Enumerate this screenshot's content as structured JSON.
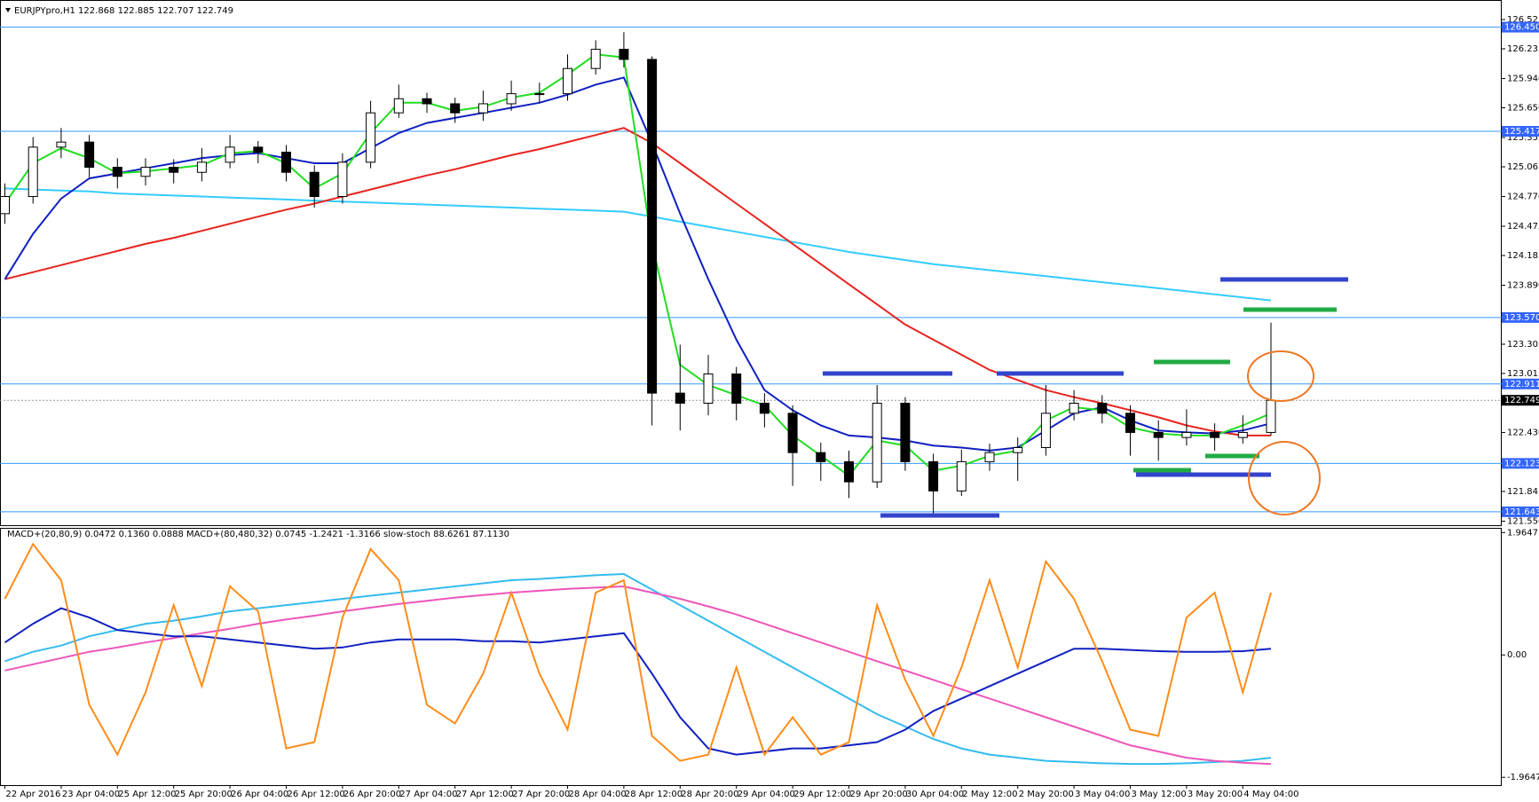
{
  "chart_data": [
    {
      "type": "candlestick",
      "title": "EURJPYpro,H1 122.868 122.885 122.707 122.749",
      "categories": [
        "22 Apr 2016",
        null,
        "23 Apr 04:00",
        null,
        "25 Apr 12:00",
        null,
        "25 Apr 20:00",
        null,
        "26 Apr 04:00",
        null,
        "26 Apr 12:00",
        null,
        "26 Apr 20:00",
        null,
        "27 Apr 04:00",
        null,
        "27 Apr 12:00",
        null,
        "27 Apr 20:00",
        null,
        "28 Apr 04:00",
        null,
        "28 Apr 12:00",
        null,
        "28 Apr 20:00",
        null,
        "29 Apr 04:00",
        null,
        "29 Apr 12:00",
        null,
        "29 Apr 20:00",
        null,
        "30 Apr 04:00",
        null,
        "2 May 12:00",
        null,
        "2 May 20:00",
        null,
        "3 May 04:00",
        null,
        "3 May 12:00",
        null,
        "3 May 20:00",
        null,
        "4 May 04:00",
        null
      ],
      "open": [
        124.6,
        124.77,
        125.26,
        125.31,
        125.06,
        124.97,
        125.06,
        125.01,
        125.11,
        125.26,
        125.21,
        125.01,
        124.77,
        125.11,
        125.6,
        125.74,
        125.69,
        125.6,
        125.69,
        125.79,
        125.79,
        126.04,
        126.23,
        126.13,
        122.82,
        122.72,
        123.01,
        122.72,
        122.62,
        122.23,
        122.14,
        121.94,
        122.72,
        122.14,
        121.85,
        122.14,
        122.23,
        122.28,
        122.62,
        122.72,
        122.62,
        122.43,
        122.38,
        122.43,
        122.38,
        122.43
      ],
      "high": [
        124.9,
        125.36,
        125.45,
        125.38,
        125.15,
        125.15,
        125.14,
        125.25,
        125.38,
        125.32,
        125.28,
        125.08,
        125.2,
        125.72,
        125.88,
        125.8,
        125.75,
        125.82,
        125.92,
        125.9,
        126.18,
        126.32,
        126.4,
        126.16,
        123.3,
        123.2,
        123.08,
        122.82,
        122.7,
        122.33,
        122.25,
        122.9,
        122.78,
        122.22,
        122.26,
        122.32,
        122.38,
        122.9,
        122.85,
        122.8,
        122.7,
        122.55,
        122.66,
        122.52,
        122.6,
        123.52
      ],
      "low": [
        124.5,
        124.7,
        125.15,
        124.96,
        124.85,
        124.88,
        124.9,
        124.92,
        125.05,
        125.1,
        124.92,
        124.66,
        124.7,
        125.05,
        125.55,
        125.6,
        125.5,
        125.52,
        125.62,
        125.7,
        125.72,
        125.98,
        126.05,
        122.5,
        122.45,
        122.6,
        122.55,
        122.48,
        121.9,
        121.95,
        121.78,
        121.88,
        122.05,
        121.62,
        121.8,
        122.05,
        121.95,
        122.2,
        122.55,
        122.52,
        122.2,
        122.15,
        122.3,
        122.25,
        122.32,
        122.4
      ],
      "close": [
        124.77,
        125.26,
        125.31,
        125.06,
        124.97,
        125.06,
        125.01,
        125.11,
        125.26,
        125.21,
        125.01,
        124.77,
        125.11,
        125.6,
        125.74,
        125.69,
        125.6,
        125.69,
        125.79,
        125.79,
        126.04,
        126.23,
        126.13,
        122.82,
        122.72,
        123.01,
        122.72,
        122.62,
        122.23,
        122.14,
        121.94,
        122.72,
        122.14,
        121.85,
        122.14,
        122.23,
        122.28,
        122.62,
        122.72,
        122.62,
        122.43,
        122.38,
        122.43,
        122.38,
        122.43,
        122.749
      ],
      "series": [
        {
          "color": "#33ccff",
          "values": [
            124.85,
            124.84,
            124.83,
            124.82,
            124.8,
            124.79,
            124.78,
            124.77,
            124.76,
            124.75,
            124.74,
            124.73,
            124.72,
            124.71,
            124.7,
            124.69,
            124.68,
            124.67,
            124.66,
            124.65,
            124.64,
            124.63,
            124.62,
            124.57,
            124.52,
            124.47,
            124.42,
            124.37,
            124.32,
            124.27,
            124.22,
            124.18,
            124.14,
            124.1,
            124.07,
            124.04,
            124.01,
            123.98,
            123.95,
            123.92,
            123.89,
            123.86,
            123.83,
            123.8,
            123.77,
            123.74
          ]
        },
        {
          "color": "#e8231e",
          "values": [
            123.95,
            124.02,
            124.09,
            124.16,
            124.23,
            124.3,
            124.36,
            124.43,
            124.5,
            124.57,
            124.64,
            124.7,
            124.77,
            124.84,
            124.91,
            124.98,
            125.04,
            125.11,
            125.18,
            125.24,
            125.31,
            125.38,
            125.45,
            125.3,
            125.1,
            124.9,
            124.7,
            124.5,
            124.3,
            124.1,
            123.9,
            123.7,
            123.5,
            123.35,
            123.2,
            123.05,
            122.95,
            122.85,
            122.78,
            122.72,
            122.65,
            122.58,
            122.5,
            122.44,
            122.4,
            122.4
          ]
        },
        {
          "color": "#1020c0",
          "values": [
            123.95,
            124.4,
            124.75,
            124.95,
            125.0,
            125.05,
            125.1,
            125.15,
            125.18,
            125.2,
            125.15,
            125.1,
            125.1,
            125.25,
            125.4,
            125.5,
            125.55,
            125.6,
            125.65,
            125.7,
            125.78,
            125.88,
            125.95,
            125.3,
            124.6,
            123.95,
            123.35,
            122.85,
            122.65,
            122.5,
            122.4,
            122.38,
            122.35,
            122.3,
            122.28,
            122.25,
            122.28,
            122.45,
            122.62,
            122.68,
            122.55,
            122.45,
            122.43,
            122.42,
            122.45,
            122.52
          ]
        },
        {
          "color": "#22dd22",
          "values": [
            124.7,
            125.1,
            125.25,
            125.15,
            125.0,
            125.02,
            125.05,
            125.08,
            125.2,
            125.22,
            125.1,
            124.85,
            125.0,
            125.4,
            125.7,
            125.7,
            125.62,
            125.66,
            125.75,
            125.8,
            125.98,
            126.18,
            126.15,
            124.3,
            123.1,
            122.9,
            122.8,
            122.7,
            122.4,
            122.2,
            122.0,
            122.35,
            122.3,
            122.05,
            122.1,
            122.2,
            122.25,
            122.55,
            122.68,
            122.65,
            122.48,
            122.42,
            122.4,
            122.4,
            122.5,
            122.62
          ]
        }
      ],
      "ylim": [
        121.51,
        126.64
      ],
      "yticks": [
        126.525,
        126.235,
        {
          "value": 125.94,
          "label": "125.940"
        },
        {
          "value": 125.65,
          "label": "125.650"
        },
        125.355,
        125.065,
        {
          "value": 124.77,
          "label": "124.770"
        },
        124.475,
        124.185,
        {
          "value": 123.89,
          "label": "123.890"
        },
        123.305,
        123.015,
        {
          "value": 122.43,
          "label": "122.430"
        },
        121.845,
        {
          "value": 121.55,
          "label": "121.550"
        }
      ],
      "levels": [
        {
          "value": 126.45,
          "label": "126.450"
        },
        125.417,
        {
          "value": 123.57,
          "label": "123.570"
        },
        122.911,
        122.123,
        121.643
      ],
      "current": 122.749
    },
    {
      "type": "line",
      "title": "MACD+(20,80,9) 0.0472 0.1360 0.0888 MACD+(80,480,32) 0.0745 -1.2421 -1.3166 slow-stoch 88.6261 87.1130",
      "series": [
        {
          "color": "#33bbee",
          "values": [
            -0.1,
            0.05,
            0.15,
            0.3,
            0.4,
            0.5,
            0.55,
            0.62,
            0.7,
            0.75,
            0.8,
            0.85,
            0.9,
            0.95,
            1.0,
            1.05,
            1.1,
            1.15,
            1.2,
            1.22,
            1.25,
            1.28,
            1.3,
            1.05,
            0.8,
            0.55,
            0.3,
            0.05,
            -0.2,
            -0.45,
            -0.7,
            -0.95,
            -1.15,
            -1.35,
            -1.5,
            -1.6,
            -1.65,
            -1.7,
            -1.72,
            -1.74,
            -1.75,
            -1.75,
            -1.74,
            -1.72,
            -1.7,
            -1.65
          ]
        },
        {
          "color": "#ee55bb",
          "values": [
            -0.25,
            -0.15,
            -0.05,
            0.05,
            0.12,
            0.2,
            0.27,
            0.35,
            0.42,
            0.5,
            0.57,
            0.63,
            0.7,
            0.76,
            0.82,
            0.87,
            0.92,
            0.96,
            1.0,
            1.03,
            1.06,
            1.08,
            1.1,
            1.0,
            0.9,
            0.78,
            0.65,
            0.5,
            0.35,
            0.2,
            0.05,
            -0.1,
            -0.25,
            -0.4,
            -0.55,
            -0.7,
            -0.85,
            -1.0,
            -1.15,
            -1.3,
            -1.45,
            -1.55,
            -1.65,
            -1.7,
            -1.73,
            -1.75
          ]
        },
        {
          "color": "#1020c0",
          "values": [
            0.2,
            0.5,
            0.75,
            0.6,
            0.4,
            0.35,
            0.3,
            0.3,
            0.25,
            0.2,
            0.15,
            0.1,
            0.12,
            0.2,
            0.25,
            0.25,
            0.25,
            0.22,
            0.22,
            0.2,
            0.25,
            0.3,
            0.35,
            -0.3,
            -1.0,
            -1.5,
            -1.6,
            -1.55,
            -1.5,
            -1.5,
            -1.45,
            -1.4,
            -1.2,
            -0.9,
            -0.7,
            -0.5,
            -0.3,
            -0.1,
            0.1,
            0.1,
            0.08,
            0.06,
            0.05,
            0.05,
            0.06,
            0.1
          ]
        },
        {
          "color": "#ff8c1a",
          "values": [
            0.9,
            1.78,
            1.2,
            -0.8,
            -1.6,
            -0.6,
            0.8,
            -0.5,
            1.1,
            0.7,
            -1.5,
            -1.4,
            0.6,
            1.7,
            1.2,
            -0.8,
            -1.1,
            -0.3,
            1.0,
            -0.3,
            -1.2,
            1.0,
            1.2,
            -1.3,
            -1.7,
            -1.6,
            -0.2,
            -1.6,
            -1.0,
            -1.6,
            -1.4,
            0.8,
            -0.4,
            -1.3,
            -0.2,
            1.2,
            -0.2,
            1.5,
            0.9,
            -0.1,
            -1.2,
            -1.3,
            0.6,
            1.0,
            -0.6,
            1.0
          ]
        }
      ],
      "ylim": [
        -2.09,
        2.04
      ],
      "yticks": [
        1.9647,
        {
          "value": 0,
          "label": "0.00"
        },
        -1.9647
      ]
    }
  ]
}
